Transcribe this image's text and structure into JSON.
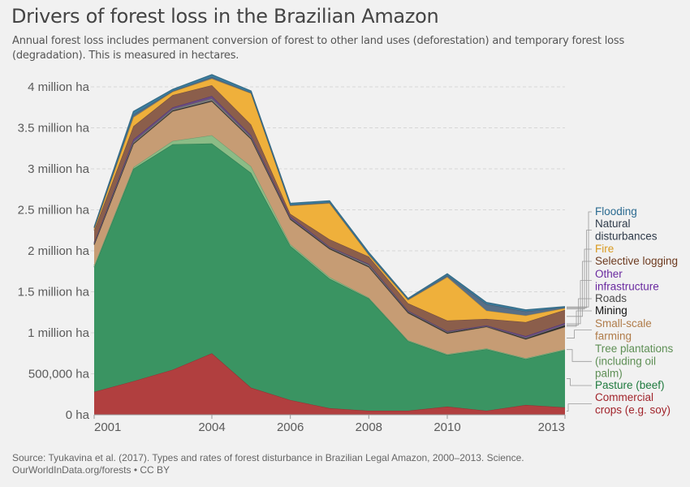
{
  "header": {
    "title": "Drivers of forest loss in the Brazilian Amazon",
    "subtitle": "Annual forest loss includes permanent conversion of forest to other land uses (deforestation) and temporary forest loss (degradation). This is measured in hectares."
  },
  "footer": {
    "source": "Source: Tyukavina et al. (2017). Types and rates of forest disturbance in Brazilian Legal Amazon, 2000–2013. Science.",
    "credit": "OurWorldInData.org/forests • CC BY"
  },
  "chart_data": {
    "type": "area",
    "stacked": true,
    "title": "Drivers of forest loss in the Brazilian Amazon",
    "xlabel": "",
    "ylabel": "",
    "unit": "hectares",
    "x": [
      2001,
      2002,
      2003,
      2004,
      2005,
      2006,
      2007,
      2008,
      2009,
      2010,
      2011,
      2012,
      2013
    ],
    "x_ticks": [
      2001,
      2004,
      2006,
      2008,
      2010,
      2013
    ],
    "x_tick_labels": [
      "2001",
      "2004",
      "2006",
      "2008",
      "2010",
      "2013"
    ],
    "ylim": [
      0,
      4000000
    ],
    "y_ticks": [
      0,
      500000,
      1000000,
      1500000,
      2000000,
      2500000,
      3000000,
      3500000,
      4000000
    ],
    "y_tick_labels": [
      "0 ha",
      "500,000 ha",
      "1 million ha",
      "1.5 million ha",
      "2 million ha",
      "2.5 million ha",
      "3 million ha",
      "3.5 million ha",
      "4 million ha"
    ],
    "grid": "horizontal-dashed",
    "legend_position": "right",
    "series": [
      {
        "name": "Commercial crops (e.g. soy)",
        "label_lines": [
          "Commercial",
          "crops (e.g. soy)"
        ],
        "color": "#b13f3f",
        "label_color": "#a1242b",
        "values": [
          280000,
          410000,
          550000,
          750000,
          330000,
          180000,
          80000,
          50000,
          50000,
          100000,
          50000,
          120000,
          90000
        ]
      },
      {
        "name": "Pasture (beef)",
        "label_lines": [
          "Pasture (beef)"
        ],
        "color": "#3a9462",
        "label_color": "#1f7a3e",
        "values": [
          1520000,
          2590000,
          2750000,
          2560000,
          2620000,
          1880000,
          1580000,
          1370000,
          850000,
          630000,
          750000,
          560000,
          700000
        ]
      },
      {
        "name": "Tree plantations (including oil palm)",
        "label_lines": [
          "Tree plantations",
          "(including oil",
          "palm)"
        ],
        "color": "#8bbc86",
        "label_color": "#5e8f55",
        "values": [
          20000,
          20000,
          40000,
          100000,
          80000,
          20000,
          20000,
          10000,
          10000,
          10000,
          10000,
          10000,
          10000
        ]
      },
      {
        "name": "Small-scale farming",
        "label_lines": [
          "Small-scale",
          "farming"
        ],
        "color": "#c69c74",
        "label_color": "#b07c4a",
        "values": [
          250000,
          280000,
          360000,
          410000,
          330000,
          300000,
          340000,
          370000,
          330000,
          250000,
          260000,
          230000,
          270000
        ]
      },
      {
        "name": "Mining",
        "label_lines": [
          "Mining"
        ],
        "color": "#2c2c2c",
        "label_color": "#111111",
        "values": [
          10000,
          10000,
          10000,
          10000,
          10000,
          10000,
          10000,
          10000,
          10000,
          10000,
          10000,
          10000,
          20000
        ]
      },
      {
        "name": "Roads",
        "label_lines": [
          "Roads"
        ],
        "color": "#7a7a7a",
        "label_color": "#4a4a4a",
        "values": [
          10000,
          20000,
          20000,
          30000,
          20000,
          10000,
          10000,
          20000,
          10000,
          10000,
          0,
          10000,
          10000
        ]
      },
      {
        "name": "Other infrastructure",
        "label_lines": [
          "Other",
          "infrastructure"
        ],
        "color": "#6a4a86",
        "label_color": "#6a2aa0",
        "values": [
          10000,
          30000,
          20000,
          30000,
          20000,
          20000,
          10000,
          10000,
          10000,
          10000,
          10000,
          20000,
          20000
        ]
      },
      {
        "name": "Selective logging",
        "label_lines": [
          "Selective logging"
        ],
        "color": "#8b5e4b",
        "label_color": "#6d3a1f",
        "values": [
          150000,
          160000,
          150000,
          130000,
          130000,
          30000,
          90000,
          90000,
          90000,
          130000,
          80000,
          170000,
          160000
        ]
      },
      {
        "name": "Fire",
        "label_lines": [
          "Fire"
        ],
        "color": "#efb03b",
        "label_color": "#d99a20",
        "values": [
          20000,
          110000,
          40000,
          80000,
          380000,
          100000,
          440000,
          20000,
          40000,
          530000,
          100000,
          80000,
          20000
        ]
      },
      {
        "name": "Natural disturbances",
        "label_lines": [
          "Natural",
          "disturbances"
        ],
        "color": "#586f86",
        "label_color": "#2f3b4a",
        "values": [
          10000,
          30000,
          10000,
          20000,
          10000,
          10000,
          10000,
          10000,
          10000,
          20000,
          80000,
          50000,
          10000
        ]
      },
      {
        "name": "Flooding",
        "label_lines": [
          "Flooding"
        ],
        "color": "#3a7ea0",
        "label_color": "#2a6a90",
        "values": [
          10000,
          40000,
          20000,
          30000,
          20000,
          20000,
          20000,
          20000,
          10000,
          20000,
          20000,
          20000,
          10000
        ]
      }
    ]
  }
}
